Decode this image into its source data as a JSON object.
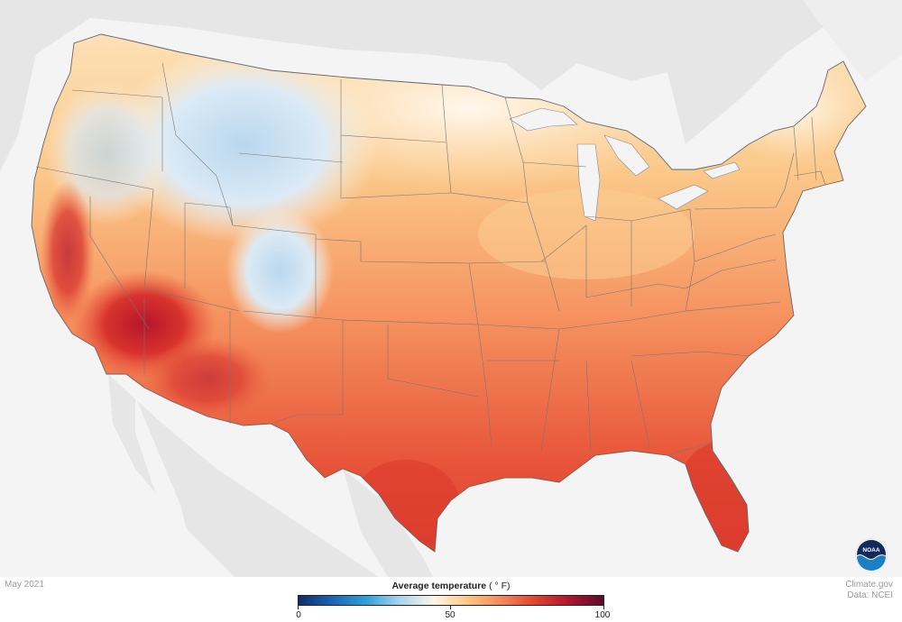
{
  "map": {
    "period": "May 2021",
    "variable": "Average temperature",
    "unit": "( ° F)"
  },
  "legend": {
    "title_bold": "Average temperature",
    "title_unit": " ( ° F)",
    "min_label": "0",
    "mid_label": "50",
    "max_label": "100",
    "min": 0,
    "max": 100,
    "color_stops": [
      "#0b2d6b",
      "#1d64b5",
      "#2ea1d9",
      "#a9d5ef",
      "#fdf6e6",
      "#fdc67e",
      "#f5875a",
      "#e2412f",
      "#b1152c",
      "#5c0a2c"
    ]
  },
  "credit": {
    "line1": "Climate.gov",
    "line2": "Data: NCEI"
  },
  "logo": {
    "icon": "noaa-logo-icon",
    "text": "NOAA"
  },
  "colors": {
    "land_outside": "#e6e6e6",
    "water": "#f4f4f4",
    "border_line": "#777777"
  }
}
